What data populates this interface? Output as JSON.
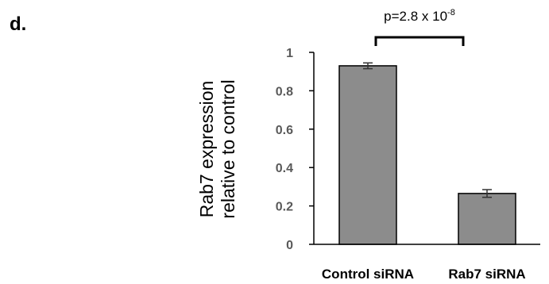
{
  "panel_label": "d.",
  "annotation": {
    "text": "p=2.8 x 10",
    "superscript": "-8"
  },
  "chart_data": {
    "type": "bar",
    "categories": [
      "Control siRNA",
      "Rab7 siRNA"
    ],
    "values": [
      0.93,
      0.265
    ],
    "errors": [
      0.015,
      0.02
    ],
    "ylabel": [
      "Rab7 expression",
      "relative to control"
    ],
    "xlabel": "",
    "ylim": [
      0,
      1
    ],
    "yticks": [
      0,
      0.2,
      0.4,
      0.6,
      0.8,
      1
    ],
    "ytick_labels": [
      "0",
      "0.2",
      "0.4",
      "0.6",
      "0.8",
      "1"
    ],
    "grid": false,
    "legend": "none",
    "bar_color": "#8c8c8c",
    "bar_edge_color": "#000000",
    "axis_color": "#000000",
    "tick_label_color": "#595959"
  }
}
